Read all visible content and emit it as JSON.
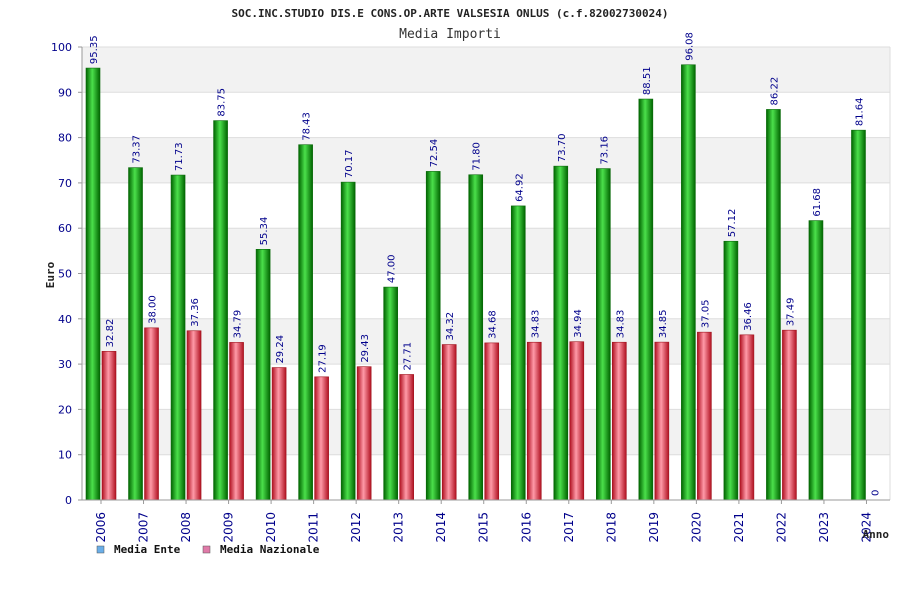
{
  "chart_data": {
    "type": "bar",
    "title": "SOC.INC.STUDIO DIS.E CONS.OP.ARTE VALSESIA ONLUS (c.f.82002730024)",
    "subtitle": "Media Importi",
    "ylabel": "Euro",
    "xlabel": "Anno",
    "ylim": [
      0,
      100
    ],
    "yticks": [
      0,
      10,
      20,
      30,
      40,
      50,
      60,
      70,
      80,
      90,
      100
    ],
    "grid": true,
    "legend_position": "bottom-left",
    "categories": [
      "2006",
      "2007",
      "2008",
      "2009",
      "2010",
      "2011",
      "2012",
      "2013",
      "2014",
      "2015",
      "2016",
      "2017",
      "2018",
      "2019",
      "2020",
      "2021",
      "2022",
      "2023",
      "2024"
    ],
    "series": [
      {
        "name": "Media Ente",
        "color": "#1fa81f",
        "legend_color": "#6aaee8",
        "values": [
          95.35,
          73.37,
          71.73,
          83.75,
          55.34,
          78.43,
          70.17,
          47.0,
          72.54,
          71.8,
          64.92,
          73.7,
          73.16,
          88.51,
          96.08,
          57.12,
          86.22,
          61.68,
          81.64
        ],
        "labels": [
          "95.35",
          "73.37",
          "71.73",
          "83.75",
          "55.34",
          "78.43",
          "70.17",
          "47.00",
          "72.54",
          "71.80",
          "64.92",
          "73.70",
          "73.16",
          "88.51",
          "96.08",
          "57.12",
          "86.22",
          "61.68",
          "81.64"
        ]
      },
      {
        "name": "Media Nazionale",
        "color": "#e0303a",
        "legend_color": "#e07aa8",
        "values": [
          32.82,
          38.0,
          37.36,
          34.79,
          29.24,
          27.19,
          29.43,
          27.71,
          34.32,
          34.68,
          34.83,
          34.94,
          34.83,
          34.85,
          37.05,
          36.46,
          37.49,
          null,
          null
        ],
        "labels": [
          "32.82",
          "38.00",
          "37.36",
          "34.79",
          "29.24",
          "27.19",
          "29.43",
          "27.71",
          "34.32",
          "34.68",
          "34.83",
          "34.94",
          "34.83",
          "34.85",
          "37.05",
          "36.46",
          "37.49",
          null,
          null
        ]
      }
    ],
    "extra_labels": [
      {
        "x": "2024",
        "text": "0"
      }
    ]
  }
}
